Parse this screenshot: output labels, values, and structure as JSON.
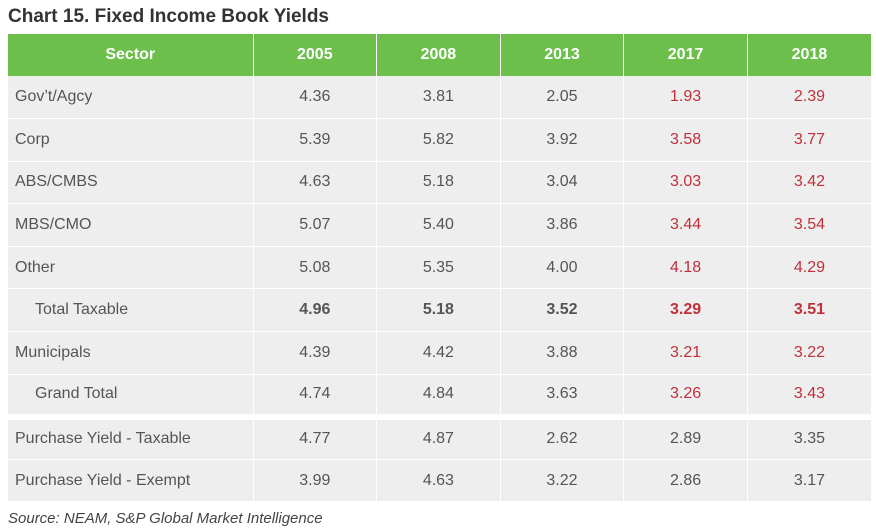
{
  "title": "Chart 15. Fixed Income Book Yields",
  "header": [
    "Sector",
    "2005",
    "2008",
    "2013",
    "2017",
    "2018"
  ],
  "rows": [
    {
      "sector": "Gov’t/Agcy",
      "values": [
        "4.36",
        "3.81",
        "2.05",
        "1.93",
        "2.39"
      ]
    },
    {
      "sector": "Corp",
      "values": [
        "5.39",
        "5.82",
        "3.92",
        "3.58",
        "3.77"
      ]
    },
    {
      "sector": "ABS/CMBS",
      "values": [
        "4.63",
        "5.18",
        "3.04",
        "3.03",
        "3.42"
      ]
    },
    {
      "sector": "MBS/CMO",
      "values": [
        "5.07",
        "5.40",
        "3.86",
        "3.44",
        "3.54"
      ]
    },
    {
      "sector": "Other",
      "values": [
        "5.08",
        "5.35",
        "4.00",
        "4.18",
        "4.29"
      ]
    },
    {
      "sector": "Total Taxable",
      "values": [
        "4.96",
        "5.18",
        "3.52",
        "3.29",
        "3.51"
      ]
    },
    {
      "sector": "Municipals",
      "values": [
        "4.39",
        "4.42",
        "3.88",
        "3.21",
        "3.22"
      ]
    },
    {
      "sector": "Grand Total",
      "values": [
        "4.74",
        "4.84",
        "3.63",
        "3.26",
        "3.43"
      ]
    },
    {
      "sector": "Purchase Yield - Taxable",
      "values": [
        "4.77",
        "4.87",
        "2.62",
        "2.89",
        "3.35"
      ]
    },
    {
      "sector": "Purchase Yield - Exempt",
      "values": [
        "3.99",
        "4.63",
        "3.22",
        "2.86",
        "3.17"
      ]
    }
  ],
  "colors": {
    "header_bg": "#6bbf4a",
    "row_bg": "#eeeeee",
    "highlight_text": "#c0303b"
  },
  "source": "Source: NEAM, S&P Global Market Intelligence"
}
